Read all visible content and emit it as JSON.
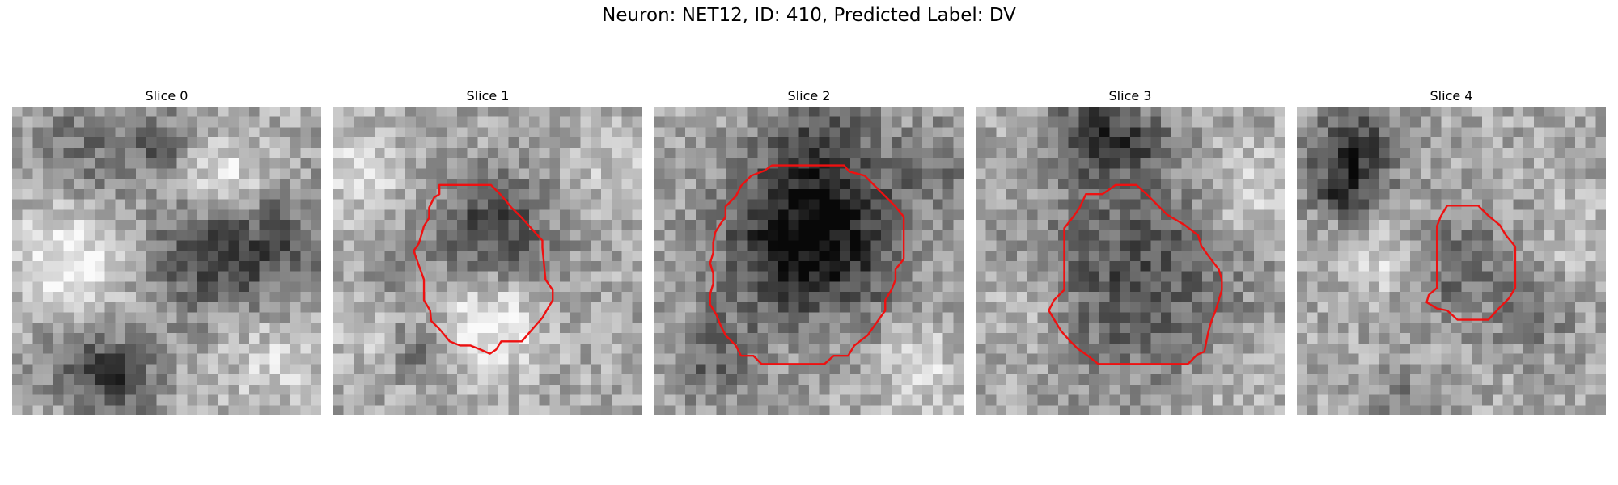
{
  "figure": {
    "title": "Neuron: NET12, ID: 410, Predicted Label: DV"
  },
  "colors": {
    "contour": "#ee1111",
    "background": "#ffffff"
  },
  "panels": [
    {
      "title": "Slice 0",
      "has_contour": false
    },
    {
      "title": "Slice 1",
      "has_contour": true
    },
    {
      "title": "Slice 2",
      "has_contour": true
    },
    {
      "title": "Slice 3",
      "has_contour": true
    },
    {
      "title": "Slice 4",
      "has_contour": true
    }
  ]
}
